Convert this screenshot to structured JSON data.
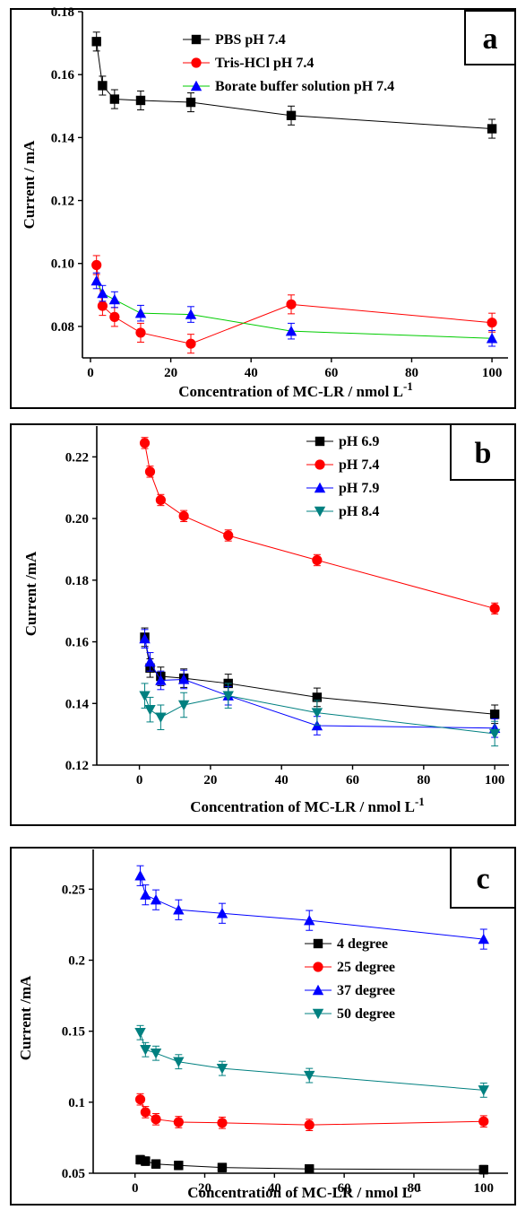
{
  "chart_data": [
    {
      "type": "line",
      "panel_label": "a",
      "xlabel": "Concentration of MC-LR / nmol L",
      "xlabel_sup": "-1",
      "ylabel": "Current / mA",
      "xlim": [
        -2,
        104
      ],
      "ylim": [
        0.07,
        0.18
      ],
      "xticks": [
        0,
        20,
        40,
        60,
        80,
        100
      ],
      "yticks": [
        0.08,
        0.1,
        0.12,
        0.14,
        0.16,
        0.18
      ],
      "ytick_labels": [
        "0.08",
        "0.10",
        "0.12",
        "0.14",
        "0.16",
        "0.18"
      ],
      "legend_position": "top-right",
      "series": [
        {
          "name": "PBS pH 7.4",
          "color": "#000000",
          "marker": "square",
          "x": [
            1.5,
            3,
            6,
            12.5,
            25,
            50,
            100
          ],
          "y": [
            0.1705,
            0.1565,
            0.1522,
            0.1518,
            0.1512,
            0.147,
            0.1428
          ],
          "err": 0.003
        },
        {
          "name": "Tris-HCl pH 7.4",
          "color": "#ff0000",
          "marker": "circle",
          "x": [
            1.5,
            3,
            6,
            12.5,
            25,
            50,
            100
          ],
          "y": [
            0.0995,
            0.0865,
            0.083,
            0.078,
            0.0745,
            0.087,
            0.0812
          ],
          "err": 0.003
        },
        {
          "name": "Borate buffer solution pH 7.4",
          "color": "#00cc00",
          "marker": "triangle-up",
          "marker_color": "#0000ff",
          "x": [
            1.5,
            3,
            6,
            12.5,
            25,
            50,
            100
          ],
          "y": [
            0.0945,
            0.0905,
            0.0885,
            0.0842,
            0.0838,
            0.0785,
            0.0762
          ],
          "err": 0.0025
        }
      ]
    },
    {
      "type": "line",
      "panel_label": "b",
      "xlabel": "Concentration of MC-LR /  nmol L",
      "xlabel_sup": "-1",
      "ylabel": "Current /mA",
      "xlim": [
        -12,
        104
      ],
      "ylim": [
        0.12,
        0.23
      ],
      "xticks": [
        0,
        20,
        40,
        60,
        80,
        100
      ],
      "yticks": [
        0.12,
        0.14,
        0.16,
        0.18,
        0.2,
        0.22
      ],
      "ytick_labels": [
        "0.12",
        "0.14",
        "0.16",
        "0.18",
        "0.20",
        "0.22"
      ],
      "legend_position": "top-right",
      "series": [
        {
          "name": "pH 6.9",
          "color": "#000000",
          "marker": "square",
          "x": [
            1.5,
            3,
            6,
            12.5,
            25,
            50,
            100
          ],
          "y": [
            0.1615,
            0.1515,
            0.1488,
            0.1482,
            0.1465,
            0.142,
            0.1365
          ],
          "err": 0.003
        },
        {
          "name": "pH 7.4",
          "color": "#ff0000",
          "marker": "circle",
          "x": [
            1.5,
            3,
            6,
            12.5,
            25,
            50,
            100
          ],
          "y": [
            0.2245,
            0.2152,
            0.206,
            0.2008,
            0.1945,
            0.1865,
            0.1708
          ],
          "err": 0.0018
        },
        {
          "name": "pH 7.9",
          "color": "#0000ff",
          "marker": "triangle-up",
          "x": [
            1.5,
            3,
            6,
            12.5,
            25,
            50,
            100
          ],
          "y": [
            0.161,
            0.1535,
            0.1475,
            0.1478,
            0.1425,
            0.1328,
            0.132
          ],
          "err": 0.003
        },
        {
          "name": "pH 8.4",
          "color": "#008080",
          "marker": "triangle-down",
          "x": [
            1.5,
            3,
            6,
            12.5,
            25,
            50,
            100
          ],
          "y": [
            0.1425,
            0.138,
            0.1355,
            0.1395,
            0.1425,
            0.137,
            0.1302
          ],
          "err": 0.004
        }
      ]
    },
    {
      "type": "line",
      "panel_label": "c",
      "xlabel": "Concentration of MC-LR / nmol L",
      "xlabel_sup": "-1",
      "ylabel": "Current /mA",
      "xlim": [
        -12,
        107
      ],
      "ylim": [
        0.05,
        0.278
      ],
      "xticks": [
        0,
        20,
        40,
        60,
        80,
        100
      ],
      "yticks": [
        0.05,
        0.1,
        0.15,
        0.2,
        0.25
      ],
      "ytick_labels": [
        "0.05",
        "0.1",
        "0.15",
        "0.2",
        "0.25"
      ],
      "legend_position": "right",
      "series": [
        {
          "name": "4   degree",
          "color": "#000000",
          "marker": "square",
          "x": [
            1.5,
            3,
            6,
            12.5,
            25,
            50,
            100
          ],
          "y": [
            0.0595,
            0.0585,
            0.0565,
            0.0555,
            0.054,
            0.053,
            0.0525
          ],
          "err": 0.003
        },
        {
          "name": "25 degree",
          "color": "#ff0000",
          "marker": "circle",
          "x": [
            1.5,
            3,
            6,
            12.5,
            25,
            50,
            100
          ],
          "y": [
            0.102,
            0.093,
            0.088,
            0.086,
            0.0855,
            0.084,
            0.0865
          ],
          "err": 0.004
        },
        {
          "name": "37 degree",
          "color": "#0000ff",
          "marker": "triangle-up",
          "x": [
            1.5,
            3,
            6,
            12.5,
            25,
            50,
            100
          ],
          "y": [
            0.2595,
            0.246,
            0.2425,
            0.2355,
            0.233,
            0.228,
            0.2148
          ],
          "err": 0.007
        },
        {
          "name": "50 degree",
          "color": "#008080",
          "marker": "triangle-down",
          "x": [
            1.5,
            3,
            6,
            12.5,
            25,
            50,
            100
          ],
          "y": [
            0.149,
            0.137,
            0.1345,
            0.1285,
            0.1238,
            0.1188,
            0.1085
          ],
          "err": 0.005
        }
      ]
    }
  ]
}
